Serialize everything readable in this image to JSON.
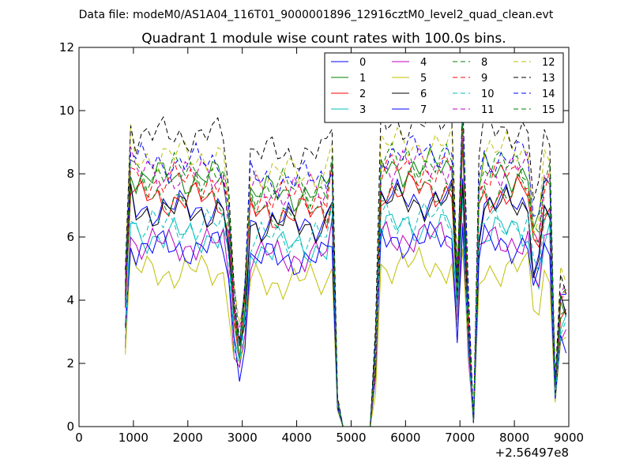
{
  "chart_data": {
    "type": "line",
    "suptitle": "Data file: modeM0/AS1A04_116T01_9000001896_12916cztM0_level2_quad_clean.evt",
    "title": "Quadrant 1 module wise count rates with 100.0s bins.",
    "xlabel": "",
    "ylabel": "",
    "x_offset_label": "+2.56497e8",
    "xlim": [
      0,
      9000
    ],
    "ylim": [
      0,
      12
    ],
    "x_ticks": [
      0,
      1000,
      2000,
      3000,
      4000,
      5000,
      6000,
      7000,
      8000,
      9000
    ],
    "y_ticks": [
      0,
      2,
      4,
      6,
      8,
      10,
      12
    ],
    "grid": false,
    "legend": {
      "placement": "top-right",
      "columns": 4
    },
    "x_segments": [
      {
        "start": 850,
        "end": 4750,
        "step": 100
      },
      {
        "start": 4750,
        "end": 5450,
        "step": 100
      },
      {
        "start": 5450,
        "end": 8950,
        "step": 100
      }
    ],
    "series": [
      {
        "name": "0",
        "color": "#0000ff",
        "dash": "solid",
        "level": 7.2,
        "wave": 0.8
      },
      {
        "name": "1",
        "color": "#008000",
        "dash": "solid",
        "level": 8.2,
        "wave": 1.8
      },
      {
        "name": "2",
        "color": "#ff0000",
        "dash": "solid",
        "level": 7.5,
        "wave": 2.8
      },
      {
        "name": "3",
        "color": "#00bfbf",
        "dash": "solid",
        "level": 6.3,
        "wave": 3.8
      },
      {
        "name": "4",
        "color": "#bf00bf",
        "dash": "solid",
        "level": 6.0,
        "wave": 4.8
      },
      {
        "name": "5",
        "color": "#bfbf00",
        "dash": "solid",
        "level": 5.1,
        "wave": 5.8
      },
      {
        "name": "6",
        "color": "#000000",
        "dash": "solid",
        "level": 7.1,
        "wave": 6.8
      },
      {
        "name": "7",
        "color": "#0000ff",
        "dash": "solid",
        "level": 5.9,
        "wave": 7.8
      },
      {
        "name": "8",
        "color": "#008000",
        "dash": "dashed",
        "level": 7.6,
        "wave": 8.8
      },
      {
        "name": "9",
        "color": "#ff0000",
        "dash": "dashed",
        "level": 8.1,
        "wave": 9.8
      },
      {
        "name": "10",
        "color": "#00bfbf",
        "dash": "dashed",
        "level": 6.6,
        "wave": 10.8
      },
      {
        "name": "11",
        "color": "#bf00bf",
        "dash": "dashed",
        "level": 8.3,
        "wave": 11.8
      },
      {
        "name": "12",
        "color": "#bfbf00",
        "dash": "dashed",
        "level": 8.9,
        "wave": 12.8
      },
      {
        "name": "13",
        "color": "#000000",
        "dash": "dashed",
        "level": 9.6,
        "wave": 13.8
      },
      {
        "name": "14",
        "color": "#0000ff",
        "dash": "dashed",
        "level": 8.7,
        "wave": 14.8
      },
      {
        "name": "15",
        "color": "#008000",
        "dash": "dashed",
        "level": 8.4,
        "wave": 15.8
      }
    ]
  }
}
